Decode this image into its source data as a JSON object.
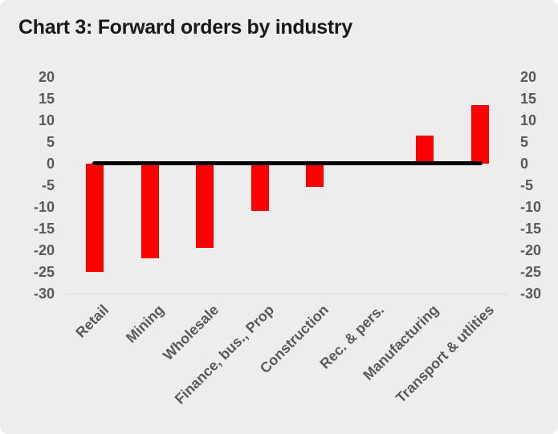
{
  "chart_data": {
    "type": "bar",
    "title": "Chart 3: Forward orders by industry",
    "categories": [
      "Retail",
      "Mining",
      "Wholesale",
      "Finance, bus., Prop",
      "Construction",
      "Rec. & pers.",
      "Manufacturing",
      "Transport & utlities"
    ],
    "values": [
      -25,
      -22,
      -19.5,
      -11,
      -5.4,
      0.6,
      6.4,
      13.5
    ],
    "ylim": [
      -30,
      20
    ],
    "yticks": [
      20,
      15,
      10,
      5,
      0,
      -5,
      -10,
      -15,
      -20,
      -25,
      -30
    ],
    "dual_y_axis": true,
    "grid": false,
    "legend": "none",
    "xlabel": "",
    "ylabel": "",
    "bar_color": "#ff0000",
    "zero_line_color": "#000000",
    "axis_text_color": "#595959",
    "baseline_color": "#d9d9d9",
    "background_color": "#ededed",
    "title_color": "#191919"
  }
}
